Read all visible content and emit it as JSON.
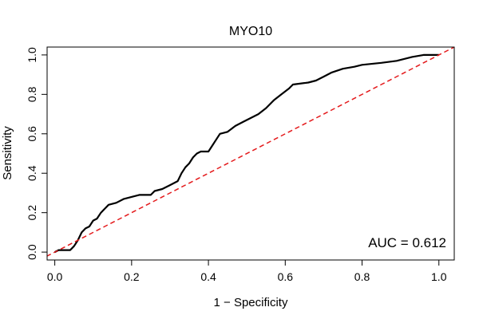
{
  "chart_data": {
    "type": "line",
    "title": "MYO10",
    "xlabel": "1 − Specificity",
    "ylabel": "Sensitivity",
    "xlim": [
      -0.02,
      1.04
    ],
    "ylim": [
      -0.04,
      1.04
    ],
    "x_ticks": [
      0.0,
      0.2,
      0.4,
      0.6,
      0.8,
      1.0
    ],
    "x_tick_labels": [
      "0.0",
      "0.2",
      "0.4",
      "0.6",
      "0.8",
      "1.0"
    ],
    "y_ticks": [
      0.0,
      0.2,
      0.4,
      0.6,
      0.8,
      1.0
    ],
    "y_tick_labels": [
      "0.0",
      "0.2",
      "0.4",
      "0.6",
      "0.8",
      "1.0"
    ],
    "grid": false,
    "annotation": "AUC = 0.612",
    "series": [
      {
        "color": "#000000",
        "style": "solid",
        "points": [
          [
            0.0,
            0.0
          ],
          [
            0.01,
            0.01
          ],
          [
            0.04,
            0.01
          ],
          [
            0.05,
            0.03
          ],
          [
            0.06,
            0.06
          ],
          [
            0.07,
            0.1
          ],
          [
            0.08,
            0.12
          ],
          [
            0.09,
            0.13
          ],
          [
            0.1,
            0.16
          ],
          [
            0.11,
            0.17
          ],
          [
            0.12,
            0.2
          ],
          [
            0.13,
            0.22
          ],
          [
            0.14,
            0.24
          ],
          [
            0.16,
            0.25
          ],
          [
            0.18,
            0.27
          ],
          [
            0.2,
            0.28
          ],
          [
            0.22,
            0.29
          ],
          [
            0.25,
            0.29
          ],
          [
            0.26,
            0.31
          ],
          [
            0.28,
            0.32
          ],
          [
            0.3,
            0.34
          ],
          [
            0.32,
            0.36
          ],
          [
            0.33,
            0.4
          ],
          [
            0.34,
            0.43
          ],
          [
            0.35,
            0.45
          ],
          [
            0.36,
            0.48
          ],
          [
            0.37,
            0.5
          ],
          [
            0.38,
            0.51
          ],
          [
            0.4,
            0.51
          ],
          [
            0.41,
            0.54
          ],
          [
            0.42,
            0.57
          ],
          [
            0.43,
            0.6
          ],
          [
            0.45,
            0.61
          ],
          [
            0.47,
            0.64
          ],
          [
            0.49,
            0.66
          ],
          [
            0.51,
            0.68
          ],
          [
            0.53,
            0.7
          ],
          [
            0.55,
            0.73
          ],
          [
            0.57,
            0.77
          ],
          [
            0.59,
            0.8
          ],
          [
            0.61,
            0.83
          ],
          [
            0.62,
            0.85
          ],
          [
            0.66,
            0.86
          ],
          [
            0.68,
            0.87
          ],
          [
            0.7,
            0.89
          ],
          [
            0.72,
            0.91
          ],
          [
            0.75,
            0.93
          ],
          [
            0.78,
            0.94
          ],
          [
            0.8,
            0.95
          ],
          [
            0.85,
            0.96
          ],
          [
            0.89,
            0.97
          ],
          [
            0.93,
            0.99
          ],
          [
            0.96,
            1.0
          ],
          [
            1.0,
            1.0
          ]
        ]
      },
      {
        "color": "#e41a1c",
        "style": "dashed",
        "points": [
          [
            -0.04,
            -0.04
          ],
          [
            1.06,
            1.06
          ]
        ]
      }
    ]
  }
}
